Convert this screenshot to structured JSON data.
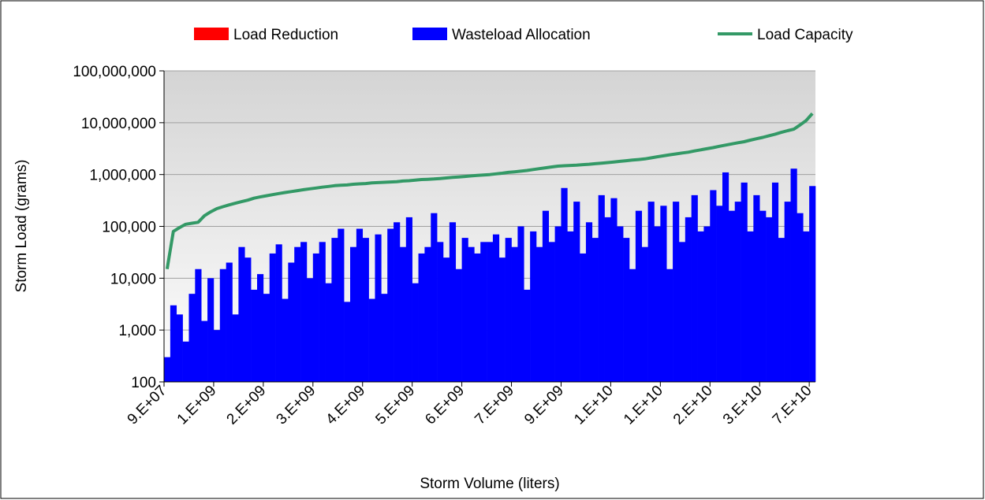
{
  "chart_data": {
    "type": "bar",
    "x_label": "Storm Volume (liters)",
    "y_label": "Storm Load (grams)",
    "log_y": true,
    "grid": true,
    "legend": "top",
    "ylim": [
      100,
      100000000
    ],
    "yticks": [
      100,
      {
        "value": 1000,
        "label": "1,000"
      },
      {
        "value": 10000,
        "label": "10,000"
      },
      {
        "value": 100000,
        "label": "100,000"
      },
      {
        "value": 1000000,
        "label": "1,000,000"
      },
      {
        "value": 10000000,
        "label": "10,000,000"
      },
      {
        "value": 100000000,
        "label": "100,000,000"
      }
    ],
    "categories": [
      "9.E+07",
      null,
      null,
      null,
      null,
      null,
      null,
      null,
      "1.E+09",
      null,
      null,
      null,
      null,
      null,
      null,
      null,
      "2.E+09",
      null,
      null,
      null,
      null,
      null,
      null,
      null,
      "3.E+09",
      null,
      null,
      null,
      null,
      null,
      null,
      null,
      "4.E+09",
      null,
      null,
      null,
      null,
      null,
      null,
      null,
      "5.E+09",
      null,
      null,
      null,
      null,
      null,
      null,
      null,
      "6.E+09",
      null,
      null,
      null,
      null,
      null,
      null,
      null,
      "7.E+09",
      null,
      null,
      null,
      null,
      null,
      null,
      null,
      "9.E+09",
      null,
      null,
      null,
      null,
      null,
      null,
      null,
      "1.E+10",
      null,
      null,
      null,
      null,
      null,
      null,
      null,
      "1.E+10",
      null,
      null,
      null,
      null,
      null,
      null,
      null,
      "2.E+10",
      null,
      null,
      null,
      null,
      null,
      null,
      null,
      "3.E+10",
      null,
      null,
      null,
      null,
      null,
      null,
      null,
      "7.E+10"
    ],
    "series": [
      {
        "name": "Load Reduction",
        "kind": "bar",
        "color": "#ff0000",
        "values": [
          null,
          null,
          null,
          null,
          null,
          null,
          null,
          null,
          null,
          null,
          null,
          null,
          null,
          null,
          null,
          null,
          null,
          null,
          null,
          null,
          null,
          null,
          null,
          null,
          null,
          null,
          null,
          null,
          null,
          null,
          null,
          null,
          null,
          null,
          null,
          null,
          null,
          null,
          null,
          null,
          null,
          null,
          null,
          null,
          null,
          null,
          null,
          null,
          null,
          null,
          null,
          null,
          null,
          null,
          null,
          null,
          null,
          null,
          null,
          null,
          null,
          null,
          null,
          null,
          null,
          null,
          null,
          null,
          null,
          null,
          null,
          null,
          null,
          null,
          null,
          null,
          null,
          null,
          null,
          null,
          null,
          null,
          null,
          null,
          null,
          null,
          null,
          null,
          null,
          null,
          null,
          null,
          null,
          null,
          null,
          null,
          null,
          null,
          null,
          null,
          null,
          null,
          null,
          null,
          null
        ]
      },
      {
        "name": "Wasteload Allocation",
        "kind": "bar",
        "color": "#0000ff",
        "values": [
          300,
          3000,
          2000,
          600,
          5000,
          15000,
          1500,
          10000,
          1000,
          15000,
          20000,
          2000,
          40000,
          25000,
          6000,
          12000,
          5000,
          30000,
          45000,
          4000,
          20000,
          40000,
          50000,
          10000,
          30000,
          50000,
          8000,
          60000,
          90000,
          3500,
          40000,
          90000,
          60000,
          4000,
          70000,
          5000,
          90000,
          120000,
          40000,
          150000,
          8000,
          30000,
          40000,
          180000,
          50000,
          25000,
          120000,
          15000,
          60000,
          40000,
          30000,
          50000,
          50000,
          70000,
          25000,
          60000,
          40000,
          100000,
          6000,
          80000,
          40000,
          200000,
          50000,
          100000,
          550000,
          80000,
          300000,
          30000,
          120000,
          60000,
          400000,
          150000,
          350000,
          100000,
          60000,
          15000,
          200000,
          40000,
          300000,
          100000,
          250000,
          15000,
          300000,
          50000,
          150000,
          400000,
          80000,
          100000,
          500000,
          250000,
          1100000,
          200000,
          300000,
          700000,
          80000,
          400000,
          200000,
          150000,
          700000,
          60000,
          300000,
          1300000,
          180000,
          80000,
          600000
        ]
      },
      {
        "name": "Load Capacity",
        "kind": "line",
        "color": "#339966",
        "values": [
          15000,
          80000,
          95000,
          110000,
          115000,
          120000,
          160000,
          190000,
          220000,
          240000,
          260000,
          280000,
          300000,
          320000,
          350000,
          370000,
          390000,
          410000,
          430000,
          450000,
          470000,
          490000,
          510000,
          530000,
          550000,
          570000,
          590000,
          610000,
          620000,
          630000,
          650000,
          660000,
          670000,
          690000,
          700000,
          710000,
          720000,
          730000,
          750000,
          760000,
          780000,
          800000,
          810000,
          820000,
          840000,
          860000,
          880000,
          900000,
          920000,
          940000,
          960000,
          980000,
          1000000,
          1030000,
          1060000,
          1100000,
          1130000,
          1160000,
          1200000,
          1250000,
          1300000,
          1350000,
          1400000,
          1450000,
          1480000,
          1500000,
          1520000,
          1550000,
          1580000,
          1620000,
          1660000,
          1700000,
          1750000,
          1800000,
          1850000,
          1900000,
          1950000,
          2000000,
          2100000,
          2200000,
          2300000,
          2400000,
          2500000,
          2600000,
          2700000,
          2850000,
          3000000,
          3150000,
          3300000,
          3500000,
          3700000,
          3900000,
          4100000,
          4300000,
          4600000,
          4900000,
          5200000,
          5600000,
          6000000,
          6500000,
          7000000,
          7500000,
          9000000,
          11000000,
          15000000
        ]
      }
    ]
  }
}
